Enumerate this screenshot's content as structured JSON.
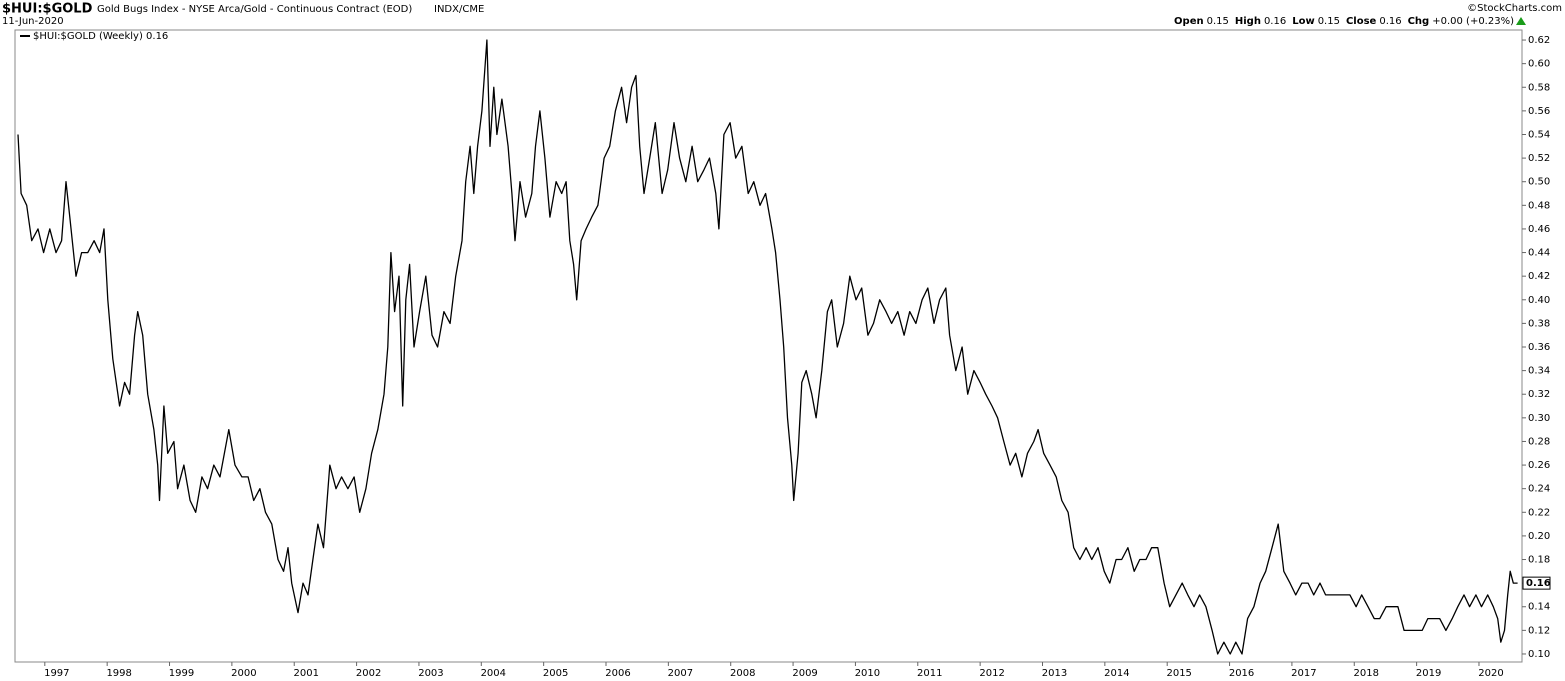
{
  "chart_data": {
    "type": "line",
    "title": "$HUI:$GOLD",
    "subtitle": "Gold Bugs Index - NYSE Arca/Gold - Continuous Contract (EOD)",
    "exchange": "INDX/CME",
    "date": "11-Jun-2020",
    "credit": "©StockCharts.com",
    "quote": [
      {
        "label": "Open",
        "value": "0.15"
      },
      {
        "label": "High",
        "value": "0.16"
      },
      {
        "label": "Low",
        "value": "0.15"
      },
      {
        "label": "Close",
        "value": "0.16"
      },
      {
        "label": "Chg",
        "value": "+0.00 (+0.23%)"
      }
    ],
    "last_value": 0.16,
    "grid": false,
    "xlim": [
      1996.57,
      2020.69
    ],
    "ylim": [
      0.0932,
      0.6285
    ],
    "xticks": [
      1997,
      1998,
      1999,
      2000,
      2001,
      2002,
      2003,
      2004,
      2005,
      2006,
      2007,
      2008,
      2009,
      2010,
      2011,
      2012,
      2013,
      2014,
      2015,
      2016,
      2017,
      2018,
      2019,
      2020
    ],
    "yticks": [
      {
        "value": 0.1,
        "label": "0.10"
      },
      0.12,
      0.14,
      0.16,
      0.18,
      {
        "value": 0.2,
        "label": "0.20"
      },
      0.22,
      0.24,
      0.26,
      0.28,
      {
        "value": 0.3,
        "label": "0.30"
      },
      0.32,
      0.34,
      0.36,
      0.38,
      {
        "value": 0.4,
        "label": "0.40"
      },
      0.42,
      0.44,
      0.46,
      0.48,
      {
        "value": 0.5,
        "label": "0.50"
      },
      0.52,
      0.54,
      0.56,
      0.58,
      {
        "value": 0.6,
        "label": "0.60"
      },
      0.62
    ],
    "x": [
      1996.57,
      1996.62,
      1996.71,
      1996.79,
      1996.89,
      1996.98,
      1997.08,
      1997.18,
      1997.27,
      1997.34,
      1997.4,
      1997.5,
      1997.59,
      1997.69,
      1997.79,
      1997.88,
      1997.95,
      1998.01,
      1998.09,
      1998.2,
      1998.28,
      1998.36,
      1998.44,
      1998.49,
      1998.57,
      1998.65,
      1998.75,
      1998.81,
      1998.84,
      1998.91,
      1998.97,
      1999.07,
      1999.13,
      1999.23,
      1999.33,
      1999.42,
      1999.52,
      1999.61,
      1999.71,
      1999.81,
      1999.95,
      2000.05,
      2000.16,
      2000.26,
      2000.35,
      2000.45,
      2000.54,
      2000.64,
      2000.74,
      2000.83,
      2000.9,
      2000.96,
      2001.06,
      2001.14,
      2001.22,
      2001.3,
      2001.38,
      2001.47,
      2001.57,
      2001.67,
      2001.76,
      2001.86,
      2001.96,
      2002.05,
      2002.15,
      2002.24,
      2002.34,
      2002.44,
      2002.5,
      2002.55,
      2002.61,
      2002.68,
      2002.74,
      2002.79,
      2002.85,
      2002.92,
      2003.01,
      2003.11,
      2003.21,
      2003.3,
      2003.4,
      2003.5,
      2003.59,
      2003.69,
      2003.75,
      2003.82,
      2003.88,
      2003.94,
      2004.01,
      2004.09,
      2004.14,
      2004.2,
      2004.25,
      2004.33,
      2004.43,
      2004.49,
      2004.54,
      2004.62,
      2004.71,
      2004.81,
      2004.87,
      2004.94,
      2005.02,
      2005.1,
      2005.2,
      2005.29,
      2005.36,
      2005.42,
      2005.48,
      2005.53,
      2005.6,
      2005.68,
      2005.77,
      2005.87,
      2005.97,
      2006.06,
      2006.15,
      2006.25,
      2006.33,
      2006.41,
      2006.48,
      2006.54,
      2006.61,
      2006.7,
      2006.79,
      2006.9,
      2006.99,
      2007.09,
      2007.18,
      2007.28,
      2007.38,
      2007.47,
      2007.57,
      2007.66,
      2007.76,
      2007.81,
      2007.89,
      2007.99,
      2008.08,
      2008.18,
      2008.28,
      2008.37,
      2008.47,
      2008.56,
      2008.66,
      2008.72,
      2008.79,
      2008.85,
      2008.91,
      2008.98,
      2009.01,
      2009.08,
      2009.14,
      2009.21,
      2009.3,
      2009.37,
      2009.46,
      2009.55,
      2009.62,
      2009.71,
      2009.81,
      2009.91,
      2010.01,
      2010.1,
      2010.2,
      2010.29,
      2010.39,
      2010.49,
      2010.58,
      2010.68,
      2010.78,
      2010.87,
      2010.97,
      2011.07,
      2011.16,
      2011.26,
      2011.35,
      2011.45,
      2011.51,
      2011.61,
      2011.71,
      2011.8,
      2011.9,
      2012.0,
      2012.09,
      2012.19,
      2012.28,
      2012.38,
      2012.48,
      2012.57,
      2012.67,
      2012.76,
      2012.86,
      2012.93,
      2013.02,
      2013.12,
      2013.22,
      2013.31,
      2013.41,
      2013.5,
      2013.6,
      2013.7,
      2013.79,
      2013.89,
      2013.99,
      2014.08,
      2014.18,
      2014.27,
      2014.37,
      2014.47,
      2014.56,
      2014.66,
      2014.75,
      2014.85,
      2014.95,
      2015.04,
      2015.14,
      2015.24,
      2015.33,
      2015.43,
      2015.52,
      2015.62,
      2015.72,
      2015.81,
      2015.91,
      2016.01,
      2016.1,
      2016.2,
      2016.29,
      2016.39,
      2016.49,
      2016.58,
      2016.68,
      2016.78,
      2016.87,
      2016.97,
      2017.06,
      2017.16,
      2017.26,
      2017.35,
      2017.45,
      2017.54,
      2017.64,
      2017.74,
      2017.84,
      2017.93,
      2018.03,
      2018.12,
      2018.22,
      2018.32,
      2018.41,
      2018.51,
      2018.6,
      2018.7,
      2018.8,
      2018.89,
      2018.99,
      2019.09,
      2019.18,
      2019.28,
      2019.37,
      2019.47,
      2019.57,
      2019.66,
      2019.76,
      2019.85,
      2019.95,
      2020.04,
      2020.14,
      2020.23,
      2020.3,
      2020.35,
      2020.41,
      2020.46,
      2020.5,
      2020.55,
      2020.62
    ],
    "series": [
      {
        "name": "$HUI:$GOLD (Weekly) 0.16",
        "color": "#000000",
        "values": [
          0.54,
          0.49,
          0.48,
          0.45,
          0.46,
          0.44,
          0.46,
          0.44,
          0.45,
          0.5,
          0.47,
          0.42,
          0.44,
          0.44,
          0.45,
          0.44,
          0.46,
          0.4,
          0.35,
          0.31,
          0.33,
          0.32,
          0.37,
          0.39,
          0.37,
          0.32,
          0.29,
          0.26,
          0.23,
          0.31,
          0.27,
          0.28,
          0.24,
          0.26,
          0.23,
          0.22,
          0.25,
          0.24,
          0.26,
          0.25,
          0.29,
          0.26,
          0.25,
          0.25,
          0.23,
          0.24,
          0.22,
          0.21,
          0.18,
          0.17,
          0.19,
          0.16,
          0.135,
          0.16,
          0.15,
          0.18,
          0.21,
          0.19,
          0.26,
          0.24,
          0.25,
          0.24,
          0.25,
          0.22,
          0.24,
          0.27,
          0.29,
          0.32,
          0.36,
          0.44,
          0.39,
          0.42,
          0.31,
          0.4,
          0.43,
          0.36,
          0.39,
          0.42,
          0.37,
          0.36,
          0.39,
          0.38,
          0.42,
          0.45,
          0.5,
          0.53,
          0.49,
          0.53,
          0.56,
          0.62,
          0.53,
          0.58,
          0.54,
          0.57,
          0.53,
          0.49,
          0.45,
          0.5,
          0.47,
          0.49,
          0.53,
          0.56,
          0.52,
          0.47,
          0.5,
          0.49,
          0.5,
          0.45,
          0.43,
          0.4,
          0.45,
          0.46,
          0.47,
          0.48,
          0.52,
          0.53,
          0.56,
          0.58,
          0.55,
          0.58,
          0.59,
          0.53,
          0.49,
          0.52,
          0.55,
          0.49,
          0.51,
          0.55,
          0.52,
          0.5,
          0.53,
          0.5,
          0.51,
          0.52,
          0.49,
          0.46,
          0.54,
          0.55,
          0.52,
          0.53,
          0.49,
          0.5,
          0.48,
          0.49,
          0.46,
          0.44,
          0.4,
          0.36,
          0.3,
          0.26,
          0.23,
          0.27,
          0.33,
          0.34,
          0.32,
          0.3,
          0.34,
          0.39,
          0.4,
          0.36,
          0.38,
          0.42,
          0.4,
          0.41,
          0.37,
          0.38,
          0.4,
          0.39,
          0.38,
          0.39,
          0.37,
          0.39,
          0.38,
          0.4,
          0.41,
          0.38,
          0.4,
          0.41,
          0.37,
          0.34,
          0.36,
          0.32,
          0.34,
          0.33,
          0.32,
          0.31,
          0.3,
          0.28,
          0.26,
          0.27,
          0.25,
          0.27,
          0.28,
          0.29,
          0.27,
          0.26,
          0.25,
          0.23,
          0.22,
          0.19,
          0.18,
          0.19,
          0.18,
          0.19,
          0.17,
          0.16,
          0.18,
          0.18,
          0.19,
          0.17,
          0.18,
          0.18,
          0.19,
          0.19,
          0.16,
          0.14,
          0.15,
          0.16,
          0.15,
          0.14,
          0.15,
          0.14,
          0.12,
          0.1,
          0.11,
          0.1,
          0.11,
          0.1,
          0.13,
          0.14,
          0.16,
          0.17,
          0.19,
          0.21,
          0.17,
          0.16,
          0.15,
          0.16,
          0.16,
          0.15,
          0.16,
          0.15,
          0.15,
          0.15,
          0.15,
          0.15,
          0.14,
          0.15,
          0.14,
          0.13,
          0.13,
          0.14,
          0.14,
          0.14,
          0.12,
          0.12,
          0.12,
          0.12,
          0.13,
          0.13,
          0.13,
          0.12,
          0.13,
          0.14,
          0.15,
          0.14,
          0.15,
          0.14,
          0.15,
          0.14,
          0.13,
          0.11,
          0.12,
          0.15,
          0.17,
          0.16,
          0.16
        ]
      }
    ]
  }
}
